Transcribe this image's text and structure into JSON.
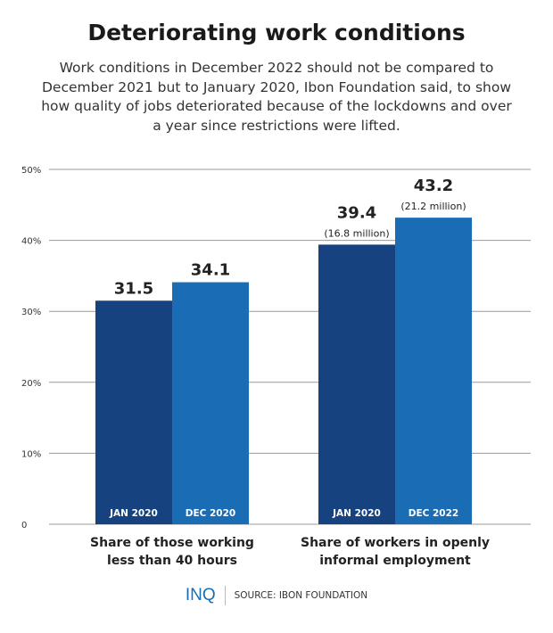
{
  "chart_data": {
    "type": "bar",
    "title": "Deteriorating work conditions",
    "subtitle": "Work conditions in December 2022 should not be compared to December 2021 but to January 2020, Ibon Foundation said, to show how quality of jobs deteriorated because of the lockdowns and over a year since restrictions were lifted.",
    "ylim": [
      0,
      50
    ],
    "yticks": [
      "0",
      "10%",
      "20%",
      "30%",
      "40%",
      "50%"
    ],
    "grid": true,
    "groups": [
      {
        "label": "Share of those working less than 40 hours",
        "bars": [
          {
            "period": "JAN 2020",
            "value": 31.5,
            "value_label": "31.5",
            "note": ""
          },
          {
            "period": "DEC 2020",
            "value": 34.1,
            "value_label": "34.1",
            "note": ""
          }
        ]
      },
      {
        "label": "Share of workers in openly informal employment",
        "bars": [
          {
            "period": "JAN 2020",
            "value": 39.4,
            "value_label": "39.4",
            "note": "(16.8 million)"
          },
          {
            "period": "DEC 2022",
            "value": 43.2,
            "value_label": "43.2",
            "note": "(21.2 million)"
          }
        ]
      }
    ],
    "colors": {
      "jan": "#16427f",
      "dec": "#1a6cb5"
    }
  },
  "footer": {
    "logo": "INQ",
    "source": "SOURCE: IBON FOUNDATION"
  }
}
